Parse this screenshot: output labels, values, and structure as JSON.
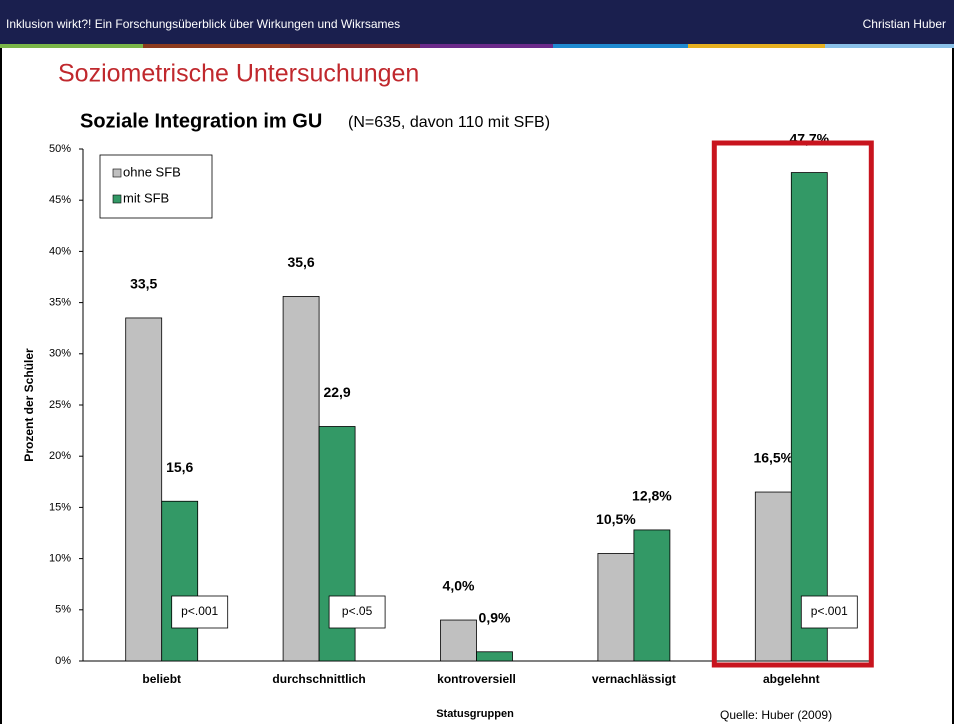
{
  "header": {
    "left": "Inklusion wirkt?! Ein Forschungsüberblick über Wirkungen und Wikrsames",
    "right": "Christian Huber"
  },
  "slide_title": "Soziometrische Untersuchungen",
  "source": "Quelle: Huber (2009)",
  "chart_data": {
    "type": "bar",
    "title": "Soziale Integration im GU",
    "subtitle": "(N=635, davon 110 mit SFB)",
    "x_label": "Statusgruppen",
    "y_label": "Prozent der Schüler",
    "categories": [
      "beliebt",
      "durchschnittlich",
      "kontroversiell",
      "vernachlässigt",
      "abgelehnt"
    ],
    "series": [
      {
        "name": "ohne SFB",
        "color": "#c0c0c0",
        "values": [
          33.5,
          35.6,
          4.0,
          10.5,
          16.5
        ],
        "value_labels": [
          "33,5",
          "35,6",
          "4,0%",
          "10,5%",
          "16,5%"
        ]
      },
      {
        "name": "mit SFB",
        "color": "#339966",
        "values": [
          15.6,
          22.9,
          0.9,
          12.8,
          47.7
        ],
        "value_labels": [
          "15,6",
          "22,9",
          "0,9%",
          "12,8%",
          "47,7%"
        ]
      }
    ],
    "ylim": [
      0,
      50
    ],
    "yticks": [
      {
        "value": 0,
        "label": "0%"
      },
      {
        "value": 5,
        "label": "5%"
      },
      {
        "value": 10,
        "label": "10%"
      },
      {
        "value": 15,
        "label": "15%"
      },
      {
        "value": 20,
        "label": "20%"
      },
      {
        "value": 25,
        "label": "25%"
      },
      {
        "value": 30,
        "label": "30%"
      },
      {
        "value": 35,
        "label": "35%"
      },
      {
        "value": 40,
        "label": "40%"
      },
      {
        "value": 45,
        "label": "45%"
      },
      {
        "value": 50,
        "label": "50%"
      }
    ],
    "legend": "upper left",
    "annotations": [
      {
        "text": "p<.001",
        "category": "beliebt"
      },
      {
        "text": "p<.05",
        "category": "durchschnittlich"
      },
      {
        "text": "p<.001",
        "category": "abgelehnt"
      }
    ],
    "highlight_category": "abgelehnt"
  }
}
